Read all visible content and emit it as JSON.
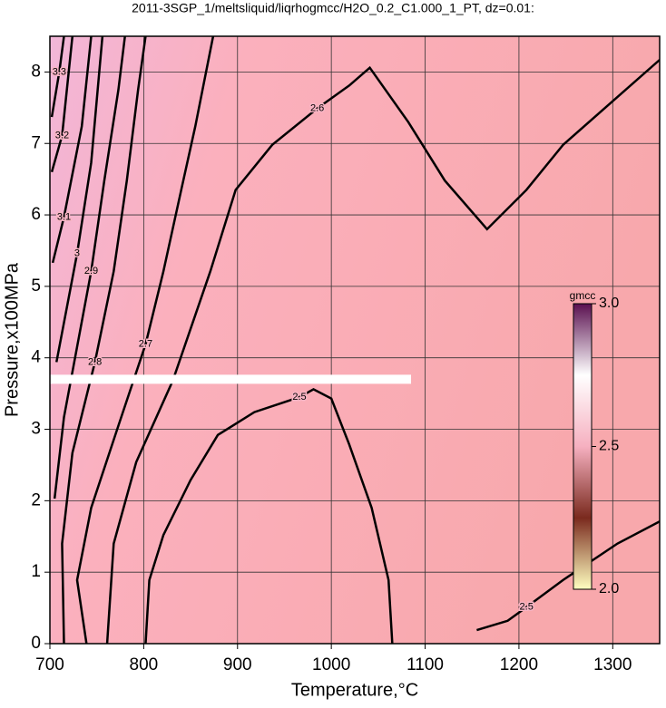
{
  "chart_data": {
    "type": "contour",
    "title": "2011-3SGP_1/meltsliquid/liqrhogmcc/H2O_0.2_C1.000_1_PT, dz=0.01:",
    "xlabel": "Temperature,°C",
    "ylabel": "Pressure,x100MPa",
    "xlim": [
      700,
      1350
    ],
    "ylim": [
      0,
      8.5
    ],
    "xticks": [
      700,
      800,
      900,
      1000,
      1100,
      1200,
      1300
    ],
    "yticks": [
      0,
      1,
      2,
      3,
      4,
      5,
      6,
      7,
      8
    ],
    "grid": true,
    "contours": [
      {
        "level": 2.6,
        "x": [
          761,
          768,
          792,
          831,
          871,
          898,
          937,
          985,
          1019,
          1041,
          1082,
          1121,
          1166,
          1208,
          1247,
          1350
        ],
        "y": [
          0,
          1.4,
          2.54,
          3.68,
          5.21,
          6.35,
          6.98,
          7.49,
          7.81,
          8.06,
          7.3,
          6.48,
          5.8,
          6.35,
          6.98,
          8.17
        ]
      },
      {
        "level": 2.5,
        "x": [
          802,
          806,
          821,
          850,
          879,
          918,
          966,
          981,
          1000,
          1019,
          1043,
          1061,
          1065
        ],
        "y": [
          0,
          0.89,
          1.52,
          2.29,
          2.92,
          3.24,
          3.45,
          3.56,
          3.43,
          2.79,
          1.9,
          0.89,
          0
        ]
      },
      {
        "level": 2.5,
        "x": [
          1155,
          1188,
          1208,
          1247,
          1305,
          1350
        ],
        "y": [
          0.19,
          0.32,
          0.51,
          0.89,
          1.4,
          1.71
        ]
      },
      {
        "level": 2.7,
        "x": [
          739,
          729,
          744,
          773,
          802,
          821,
          840,
          855,
          874
        ],
        "y": [
          0,
          0.89,
          1.9,
          3.05,
          4.19,
          5.21,
          6.35,
          7.24,
          8.5
        ]
      },
      {
        "level": 2.8,
        "x": [
          715,
          713,
          724,
          748,
          768,
          782,
          794,
          802
        ],
        "y": [
          0,
          1.4,
          2.67,
          3.94,
          5.21,
          6.48,
          7.75,
          8.5
        ]
      },
      {
        "level": 2.9,
        "x": [
          705,
          715,
          744,
          758,
          773,
          780
        ],
        "y": [
          2.03,
          3.17,
          5.21,
          6.48,
          7.75,
          8.5
        ]
      },
      {
        "level": 3,
        "x": [
          707,
          729,
          744,
          756
        ],
        "y": [
          3.94,
          5.46,
          6.73,
          8.5
        ]
      },
      {
        "level": 3.1,
        "x": [
          703,
          715,
          734,
          744
        ],
        "y": [
          5.33,
          5.97,
          7.24,
          8.5
        ]
      },
      {
        "level": 3.2,
        "x": [
          702,
          713,
          724
        ],
        "y": [
          6.6,
          7.11,
          8.5
        ]
      },
      {
        "level": 3.3,
        "x": [
          702,
          710,
          715
        ],
        "y": [
          7.37,
          8.0,
          8.5
        ]
      }
    ],
    "highlight": {
      "x": [
        700,
        1085
      ],
      "y": [
        3.7,
        3.7
      ],
      "color": "#ffffff"
    },
    "colorbar": {
      "label": "gmcc",
      "lim": [
        2,
        3
      ],
      "ticks": [
        {
          "value": 3,
          "label": "3.0"
        },
        {
          "value": 2.5,
          "label": "2.5"
        },
        {
          "value": 2,
          "label": "2.0"
        }
      ],
      "colors": [
        "#ffffc0",
        "#7a2a1e",
        "#f6b0c0",
        "#ffffff",
        "#5a1050"
      ]
    }
  }
}
